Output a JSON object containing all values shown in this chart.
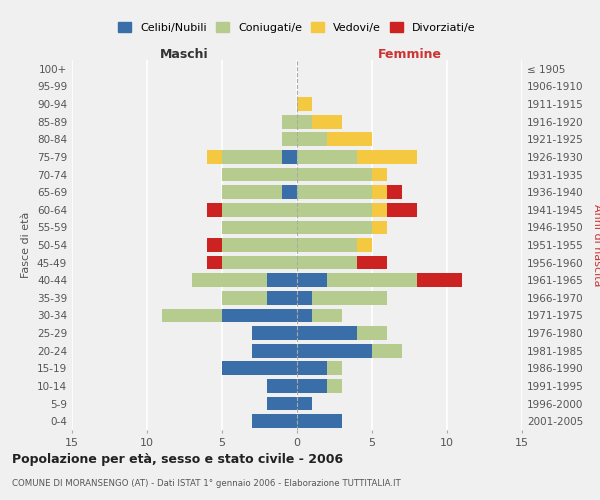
{
  "age_groups": [
    "0-4",
    "5-9",
    "10-14",
    "15-19",
    "20-24",
    "25-29",
    "30-34",
    "35-39",
    "40-44",
    "45-49",
    "50-54",
    "55-59",
    "60-64",
    "65-69",
    "70-74",
    "75-79",
    "80-84",
    "85-89",
    "90-94",
    "95-99",
    "100+"
  ],
  "birth_years": [
    "2001-2005",
    "1996-2000",
    "1991-1995",
    "1986-1990",
    "1981-1985",
    "1976-1980",
    "1971-1975",
    "1966-1970",
    "1961-1965",
    "1956-1960",
    "1951-1955",
    "1946-1950",
    "1941-1945",
    "1936-1940",
    "1931-1935",
    "1926-1930",
    "1921-1925",
    "1916-1920",
    "1911-1915",
    "1906-1910",
    "≤ 1905"
  ],
  "maschi": {
    "celibi": [
      3,
      2,
      2,
      5,
      3,
      3,
      5,
      2,
      2,
      0,
      0,
      0,
      0,
      1,
      0,
      1,
      0,
      0,
      0,
      0,
      0
    ],
    "coniugati": [
      0,
      0,
      0,
      0,
      0,
      0,
      4,
      3,
      5,
      5,
      5,
      5,
      5,
      4,
      5,
      4,
      1,
      1,
      0,
      0,
      0
    ],
    "vedovi": [
      0,
      0,
      0,
      0,
      0,
      0,
      0,
      0,
      0,
      0,
      0,
      0,
      0,
      0,
      0,
      1,
      0,
      0,
      0,
      0,
      0
    ],
    "divorziati": [
      0,
      0,
      0,
      0,
      0,
      0,
      0,
      0,
      0,
      1,
      1,
      0,
      1,
      0,
      0,
      0,
      0,
      0,
      0,
      0,
      0
    ]
  },
  "femmine": {
    "nubili": [
      3,
      1,
      2,
      2,
      5,
      4,
      1,
      1,
      2,
      0,
      0,
      0,
      0,
      0,
      0,
      0,
      0,
      0,
      0,
      0,
      0
    ],
    "coniugate": [
      0,
      0,
      1,
      1,
      2,
      2,
      2,
      5,
      6,
      4,
      4,
      5,
      5,
      5,
      5,
      4,
      2,
      1,
      0,
      0,
      0
    ],
    "vedove": [
      0,
      0,
      0,
      0,
      0,
      0,
      0,
      0,
      0,
      0,
      1,
      1,
      1,
      1,
      1,
      4,
      3,
      2,
      1,
      0,
      0
    ],
    "divorziate": [
      0,
      0,
      0,
      0,
      0,
      0,
      0,
      0,
      3,
      2,
      0,
      0,
      2,
      1,
      0,
      0,
      0,
      0,
      0,
      0,
      0
    ]
  },
  "colors": {
    "celibi": "#3a6ea8",
    "coniugati": "#b5cc8e",
    "vedovi": "#f5c842",
    "divorziati": "#cc2222"
  },
  "legend_labels": [
    "Celibi/Nubili",
    "Coniugati/e",
    "Vedovi/e",
    "Divorziati/e"
  ],
  "title": "Popolazione per età, sesso e stato civile - 2006",
  "subtitle": "COMUNE DI MORANSENGO (AT) - Dati ISTAT 1° gennaio 2006 - Elaborazione TUTTITALIA.IT",
  "xlabel_left": "Maschi",
  "xlabel_right": "Femmine",
  "ylabel_left": "Fasce di età",
  "ylabel_right": "Anni di nascita",
  "xlim": 15,
  "background_color": "#f0f0f0"
}
